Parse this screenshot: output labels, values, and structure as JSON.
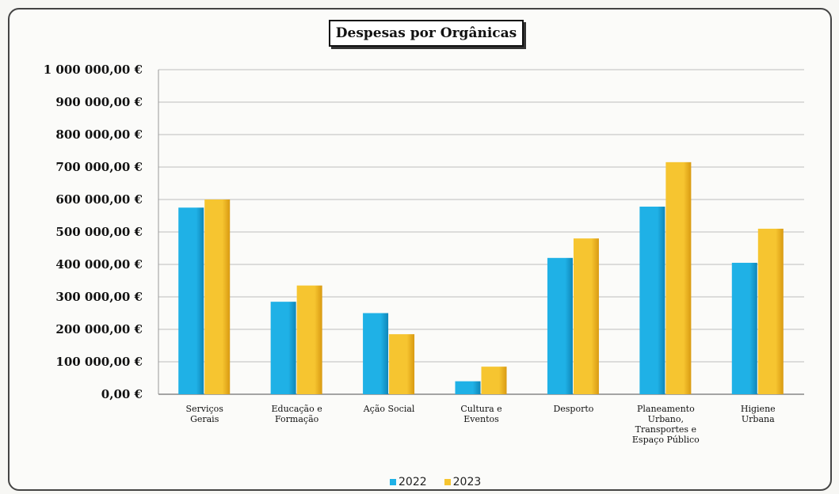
{
  "chart_data": {
    "type": "bar",
    "title": "Despesas por Orgânicas",
    "categories": [
      [
        "Serviços",
        "Gerais"
      ],
      [
        "Educação e",
        "Formação"
      ],
      [
        "Ação Social"
      ],
      [
        "Cultura e",
        "Eventos"
      ],
      [
        "Desporto"
      ],
      [
        "Planeamento",
        "Urbano,",
        "Transportes e",
        "Espaço Público"
      ],
      [
        "Higiene",
        "Urbana"
      ]
    ],
    "series": [
      {
        "name": "2022",
        "color": "#1fb1e6",
        "values": [
          575000,
          285000,
          250000,
          40000,
          420000,
          578000,
          405000
        ]
      },
      {
        "name": "2023",
        "color": "#f6c530",
        "values": [
          600000,
          335000,
          185000,
          85000,
          480000,
          715000,
          510000
        ]
      }
    ],
    "ylim": [
      0,
      1000000
    ],
    "yticks": [
      0,
      100000,
      200000,
      300000,
      400000,
      500000,
      600000,
      700000,
      800000,
      900000,
      1000000
    ],
    "ytick_labels": [
      "0,00 €",
      "100 000,00 €",
      "200 000,00 €",
      "300 000,00 €",
      "400 000,00 €",
      "500 000,00 €",
      "600 000,00 €",
      "700 000,00 €",
      "800 000,00 €",
      "900 000,00 €",
      "1 000 000,00 €"
    ],
    "grid": true,
    "legend_position": "bottom"
  }
}
